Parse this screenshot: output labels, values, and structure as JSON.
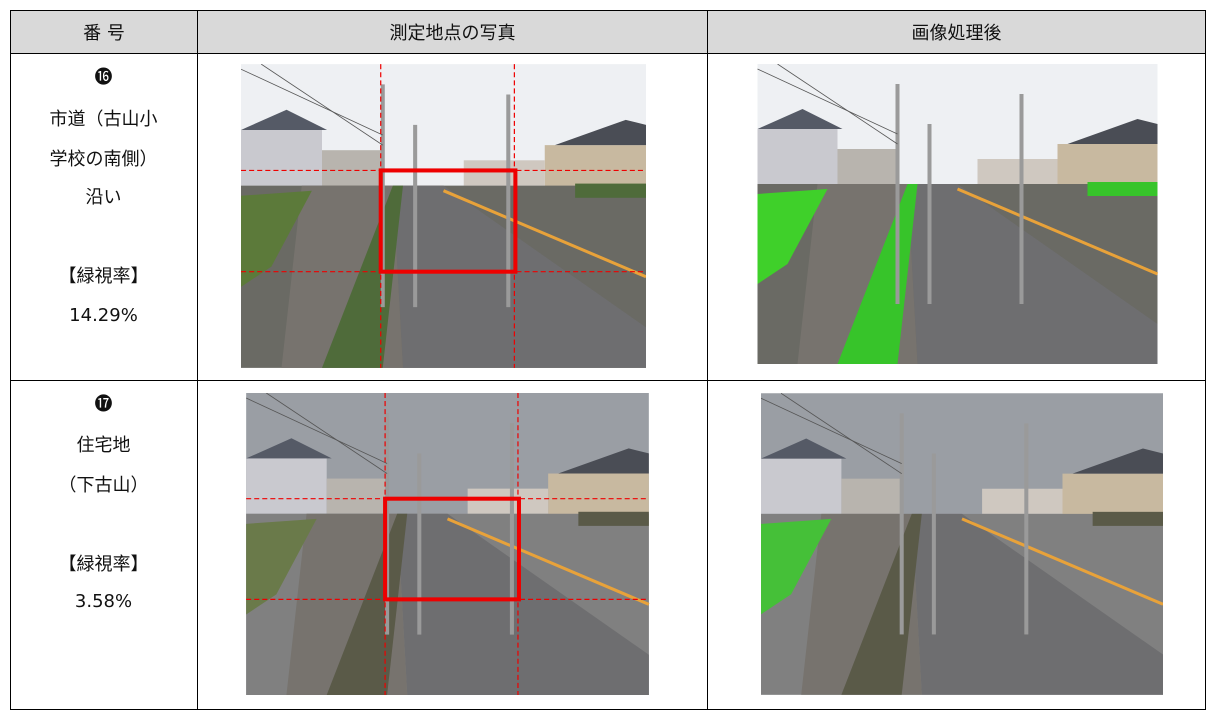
{
  "table": {
    "header": [
      "番 号",
      "測定地点の写真",
      "画像処理後"
    ],
    "rows": [
      {
        "number": "⓰",
        "location": [
          "市道（古山小",
          "学校の南側）",
          "沿い"
        ],
        "label": "【緑視率】",
        "ratio": "14.29%"
      },
      {
        "number": "⓱",
        "location": [
          "住宅地",
          "（下古山）"
        ],
        "label": "【緑視率】",
        "ratio": "3.58%"
      }
    ]
  }
}
